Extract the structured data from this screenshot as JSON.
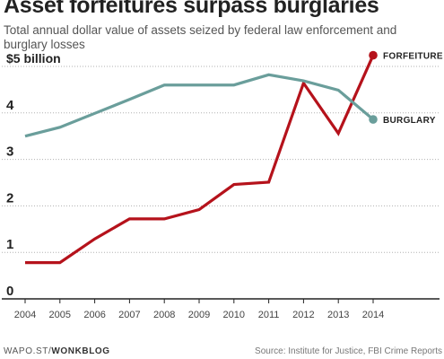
{
  "header": {
    "title": "Asset forfeitures surpass burglaries",
    "subtitle": "Total annual dollar value of assets seized by federal law enforcement and burglary losses"
  },
  "footer": {
    "brand_prefix": "WAPO.ST/",
    "brand_name": "WONKBLOG",
    "source": "Source: Institute for Justice, FBI Crime Reports"
  },
  "chart_data": {
    "type": "line",
    "title": "Asset forfeitures surpass burglaries",
    "subtitle": "Total annual dollar value of assets seized by federal law enforcement and burglary losses",
    "xlabel": "",
    "ylabel": "",
    "x": [
      2004,
      2005,
      2006,
      2007,
      2008,
      2009,
      2010,
      2011,
      2012,
      2013,
      2014
    ],
    "ylim": [
      0,
      5
    ],
    "yticks": [
      0,
      1,
      2,
      3,
      4,
      5
    ],
    "ytick_labels": [
      "0",
      "1",
      "2",
      "3",
      "4",
      "$5 billion"
    ],
    "grid": true,
    "grid_style": "dotted horizontal",
    "legend": "direct labels at line ends (right)",
    "series": [
      {
        "name": "FORFEITURE",
        "color": "#b5121b",
        "values": [
          0.78,
          0.78,
          1.29,
          1.72,
          1.72,
          1.92,
          2.46,
          2.51,
          4.64,
          3.56,
          5.24
        ]
      },
      {
        "name": "BURGLARY",
        "color": "#6a9e9b",
        "values": [
          3.5,
          3.69,
          3.99,
          4.29,
          4.6,
          4.6,
          4.6,
          4.82,
          4.69,
          4.49,
          3.86
        ]
      }
    ]
  }
}
